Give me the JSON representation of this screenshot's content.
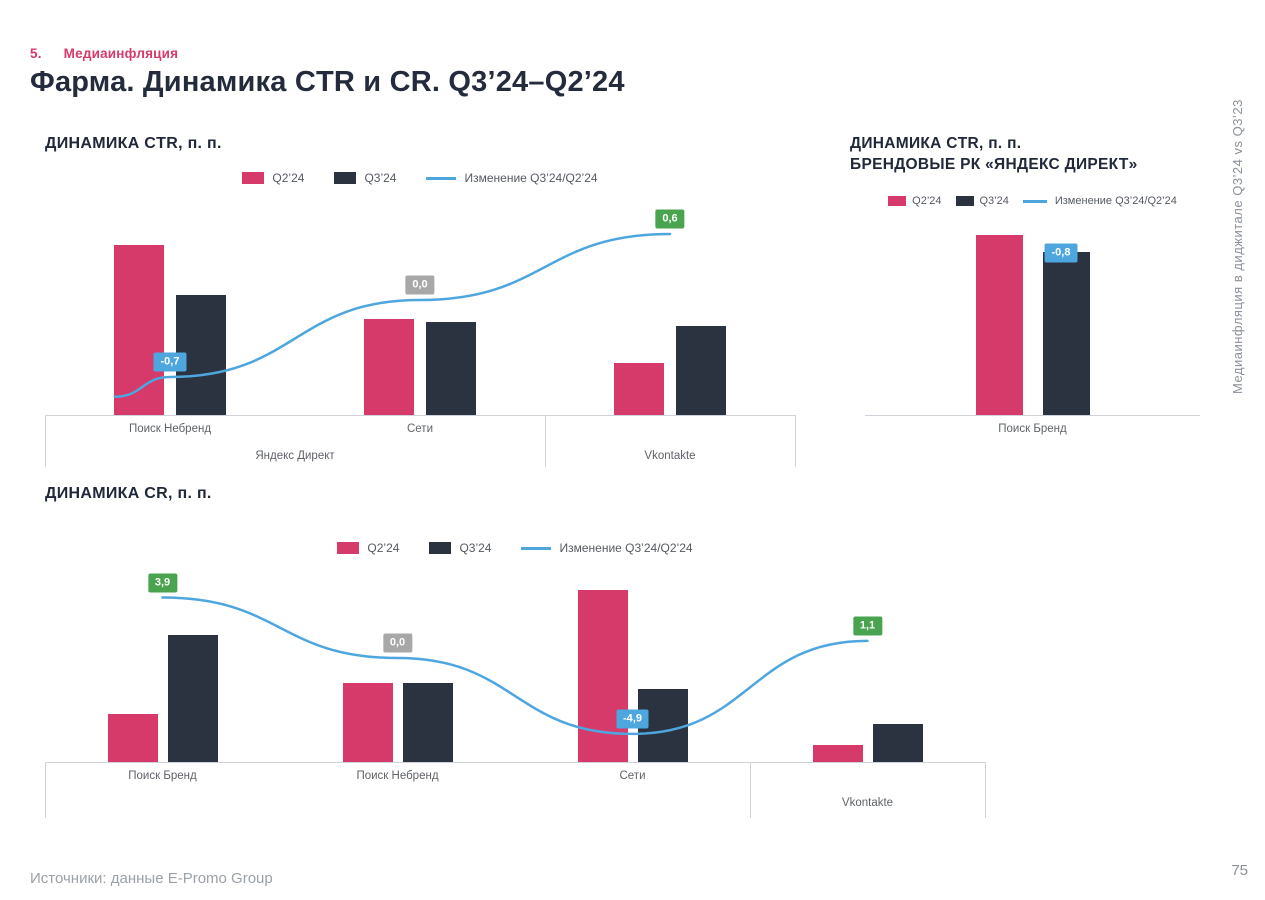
{
  "page": {
    "kicker_number": "5.",
    "kicker": "Медиаинфляция",
    "title": "Фарма. Динамика CTR и CR. Q3’24–Q2’24",
    "side_note": "Медиаинфляция в диджитале Q3’24 vs Q3’23",
    "footer": "Источники: данные E-Promo Group",
    "page_number": "75"
  },
  "colors": {
    "q2": "#d63a6a",
    "q3": "#2b3240",
    "line": "#4ea6df",
    "badge_positive": "#4aa44f",
    "badge_zero": "#a8a8a8",
    "badge_negative": "#4ea6df",
    "accent": "#d63a6a",
    "axis": "#cfd3d9",
    "label_text": "#5f6368"
  },
  "legend": {
    "q2": "Q2’24",
    "q3": "Q3’24",
    "line": "Изменение Q3’24/Q2’24"
  },
  "chart_data": [
    {
      "id": "ctr",
      "type": "grouped-bar+change-line",
      "title": "ДИНАМИКА CTR, п. п.",
      "legend_position": "top-center",
      "grid": false,
      "categories": [
        {
          "label": "Поиск Небренд",
          "group": 0,
          "show_label": true
        },
        {
          "label": "Сети",
          "group": 0,
          "show_label": true
        },
        {
          "label": "Vkontakte",
          "group": 1,
          "show_label": false
        }
      ],
      "groups": [
        {
          "label": "Яндекс Директ"
        },
        {
          "label": "Vkontakte"
        }
      ],
      "series": [
        {
          "name": "Q2’24",
          "values": [
            2.4,
            1.35,
            0.73
          ]
        },
        {
          "name": "Q3’24",
          "values": [
            1.7,
            1.32,
            1.26
          ]
        }
      ],
      "changes": [
        {
          "category": "Поиск Небренд",
          "label": "-0,7",
          "value": -0.7
        },
        {
          "category": "Сети",
          "label": "0,0",
          "value": 0
        },
        {
          "category": "Vkontakte",
          "label": "0,6",
          "value": 0.6
        }
      ],
      "badge_style": "on-line",
      "ylim": [
        0,
        3.25
      ],
      "ticks": true,
      "line": {
        "points": [
          {
            "x_frac": 0.093,
            "value": -0.88
          },
          {
            "x_frac": 0.1667,
            "value": -0.7
          },
          {
            "x_frac": 0.5,
            "value": 0
          },
          {
            "x_frac": 0.8333,
            "value": 0.6
          }
        ],
        "zero_frac": 0.5,
        "unit_frac": 0.478
      }
    },
    {
      "id": "ctr-brand",
      "type": "grouped-bar",
      "title": "ДИНАМИКА CTR, п. п.",
      "subtitle": "БРЕНДОВЫЕ РК «ЯНДЕКС ДИРЕКТ»",
      "legend_position": "top-center",
      "grid": false,
      "categories": [
        {
          "label": "Поиск Бренд",
          "group": 0,
          "show_label": true
        }
      ],
      "groups": [
        {
          "label": ""
        }
      ],
      "series": [
        {
          "name": "Q2’24",
          "values": [
            8.5
          ]
        },
        {
          "name": "Q3’24",
          "values": [
            7.7
          ]
        }
      ],
      "changes": [
        {
          "category": "Поиск Бренд",
          "label": "-0,8",
          "value": -0.8
        }
      ],
      "badge_style": "on-bar",
      "bar_badge": {
        "category": 0,
        "series": 1,
        "label": "-0,8",
        "value": -0.8
      },
      "ylim": [
        0,
        9.6
      ],
      "ticks": false
    },
    {
      "id": "cr",
      "type": "grouped-bar+change-line",
      "title": "ДИНАМИКА CR, п. п.",
      "legend_position": "top-center",
      "grid": false,
      "categories": [
        {
          "label": "Поиск Бренд",
          "group": 0,
          "show_label": true
        },
        {
          "label": "Поиск Небренд",
          "group": 0,
          "show_label": true
        },
        {
          "label": "Сети",
          "group": 0,
          "show_label": true
        },
        {
          "label": "Vkontakte",
          "group": 1,
          "show_label": false
        }
      ],
      "groups": [
        {
          "label": ""
        },
        {
          "label": "Vkontakte"
        }
      ],
      "series": [
        {
          "name": "Q2’24",
          "values": [
            2.4,
            3.9,
            8.5,
            0.85
          ]
        },
        {
          "name": "Q3’24",
          "values": [
            6.3,
            3.9,
            3.6,
            1.9
          ]
        }
      ],
      "changes": [
        {
          "category": "Поиск Бренд",
          "label": "3,9",
          "value": 3.9
        },
        {
          "category": "Поиск Небренд",
          "label": "0,0",
          "value": 0
        },
        {
          "category": "Сети",
          "label": "-4,9",
          "value": -4.9
        },
        {
          "category": "Vkontakte",
          "label": "1,1",
          "value": 1.1
        }
      ],
      "badge_style": "on-line",
      "ylim": [
        0,
        10
      ],
      "ticks": true,
      "line": {
        "points": [
          {
            "x_frac": 0.125,
            "value": 3.9
          },
          {
            "x_frac": 0.375,
            "value": 0
          },
          {
            "x_frac": 0.625,
            "value": -4.9
          },
          {
            "x_frac": 0.875,
            "value": 1.1
          }
        ],
        "zero_frac": 0.485,
        "unit_frac": 0.0767
      }
    }
  ]
}
